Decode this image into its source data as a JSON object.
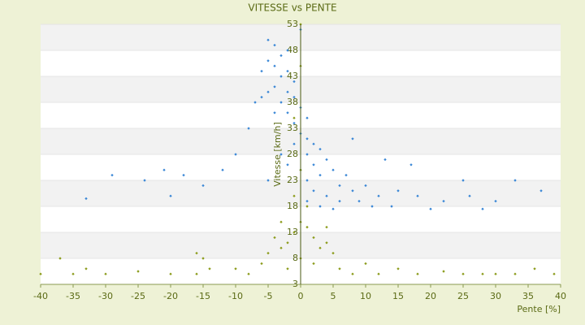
{
  "chart_data": {
    "type": "scatter",
    "title": "VITESSE vs PENTE",
    "x_label": "Pente [%]",
    "y_label": "Vitesse [km/h]",
    "xlim": [
      -40,
      40
    ],
    "xticks": [
      -40,
      -35,
      -30,
      -25,
      -20,
      -15,
      -10,
      -5,
      0,
      5,
      10,
      15,
      20,
      25,
      30,
      35,
      40
    ],
    "ylim": [
      3,
      53
    ],
    "yticks": [
      3,
      8,
      13,
      18,
      23,
      28,
      33,
      38,
      43,
      48,
      53
    ],
    "grid": true,
    "series": [
      {
        "color": "#3a87d6",
        "x": [
          -5,
          -4,
          -3,
          -5,
          -4,
          -2,
          -6,
          -3,
          -1,
          -4,
          -2,
          -5,
          -1,
          -3,
          0,
          -2,
          1,
          -1,
          -4,
          -7,
          -8,
          0,
          1,
          2,
          -1,
          3,
          -3,
          1,
          4,
          2,
          -2,
          5,
          0,
          3,
          7,
          1,
          -5,
          6,
          10,
          2,
          8,
          4,
          12,
          15,
          1,
          6,
          9,
          18,
          3,
          11,
          14,
          22,
          26,
          30,
          5,
          20,
          28,
          37,
          -10,
          -12,
          -15,
          -18,
          -21,
          -29,
          -33,
          -20,
          -24,
          13,
          17,
          25,
          33,
          8,
          -6,
          -2,
          0
        ],
        "values": [
          50,
          49,
          47,
          46,
          45,
          44,
          44,
          43,
          42,
          41,
          40,
          40,
          39,
          38,
          37,
          36,
          35,
          34,
          36,
          38,
          33,
          32,
          31,
          30,
          30,
          29,
          28,
          28,
          27,
          26,
          26,
          25,
          25,
          24,
          24,
          23,
          23,
          22,
          22,
          21,
          21,
          20,
          20,
          21,
          19,
          19,
          19,
          20,
          18,
          18,
          18,
          19,
          20,
          19,
          17.5,
          17.5,
          17.5,
          21,
          28,
          25,
          22,
          24,
          25,
          24,
          19.5,
          20,
          23,
          27,
          26,
          23,
          23,
          31,
          39,
          48,
          52
        ]
      },
      {
        "color": "#8c9c1c",
        "x": [
          -40,
          -35,
          -30,
          -25,
          -20,
          -16,
          -15,
          -14,
          -10,
          -8,
          -6,
          -5,
          -4,
          -3,
          -2,
          -1,
          0,
          0,
          1,
          2,
          3,
          4,
          5,
          2,
          -2,
          6,
          8,
          10,
          12,
          15,
          18,
          22,
          25,
          28,
          30,
          33,
          36,
          39,
          -37,
          -33,
          -16,
          -1,
          0,
          -1,
          0,
          0,
          1,
          -3,
          4
        ],
        "values": [
          5,
          5,
          5,
          5.5,
          5,
          5,
          8,
          6,
          6,
          5,
          7,
          9,
          12,
          10,
          11,
          13,
          15,
          8,
          14,
          12,
          10,
          11,
          9,
          7,
          6,
          6,
          5,
          7,
          5,
          6,
          5,
          5.5,
          5,
          5,
          5,
          5,
          6,
          5,
          8,
          6,
          9,
          20,
          25,
          35,
          45,
          53,
          18,
          15,
          14
        ]
      }
    ]
  }
}
